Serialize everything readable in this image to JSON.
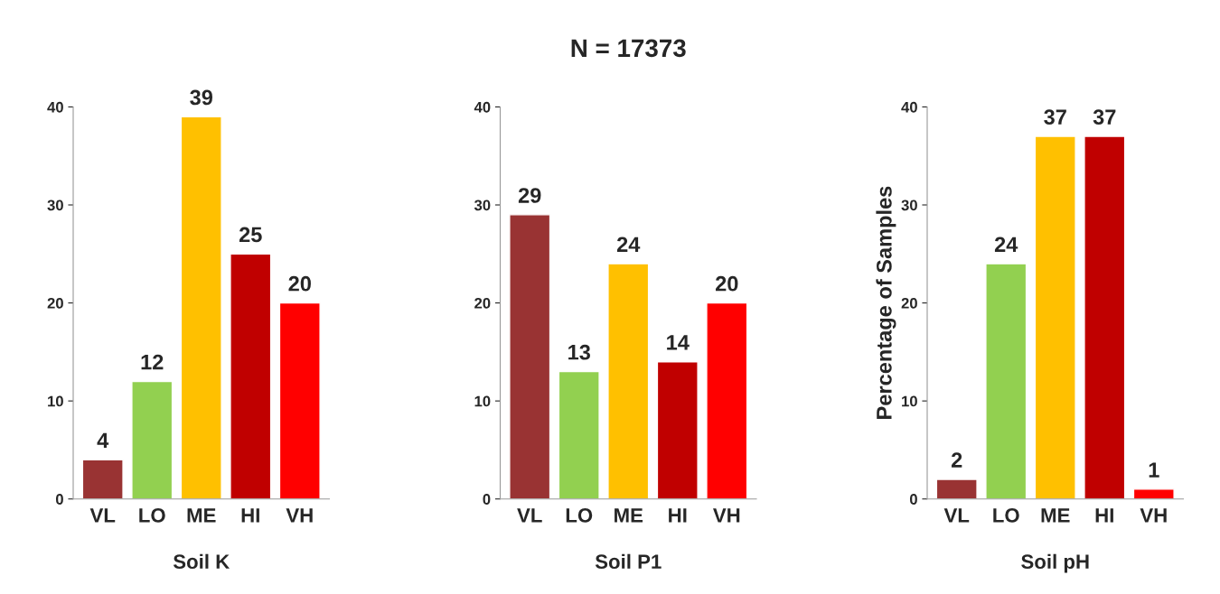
{
  "chart_data": [
    {
      "type": "bar",
      "xlabel": "Soil K",
      "categories": [
        "VL",
        "LO",
        "ME",
        "HI",
        "VH"
      ],
      "values": [
        4,
        12,
        39,
        25,
        20
      ],
      "colors": [
        "#993333",
        "#92d050",
        "#ffc000",
        "#c00000",
        "#ff0000"
      ],
      "ylim": [
        0,
        40
      ],
      "yticks": [
        0,
        10,
        20,
        30,
        40
      ],
      "data_labels": true,
      "grid": false
    },
    {
      "type": "bar",
      "title": "N = 17373",
      "xlabel": "Soil P1",
      "categories": [
        "VL",
        "LO",
        "ME",
        "HI",
        "VH"
      ],
      "values": [
        29,
        13,
        24,
        14,
        20
      ],
      "colors": [
        "#993333",
        "#92d050",
        "#ffc000",
        "#c00000",
        "#ff0000"
      ],
      "ylim": [
        0,
        40
      ],
      "yticks": [
        0,
        10,
        20,
        30,
        40
      ],
      "data_labels": true,
      "grid": false
    },
    {
      "type": "bar",
      "xlabel": "Soil pH",
      "ylabel": "Percentage of Samples",
      "categories": [
        "VL",
        "LO",
        "ME",
        "HI",
        "VH"
      ],
      "values": [
        2,
        24,
        37,
        37,
        1
      ],
      "colors": [
        "#993333",
        "#92d050",
        "#ffc000",
        "#c00000",
        "#ff0000"
      ],
      "ylim": [
        0,
        40
      ],
      "yticks": [
        0,
        10,
        20,
        30,
        40
      ],
      "data_labels": true,
      "grid": false
    }
  ]
}
